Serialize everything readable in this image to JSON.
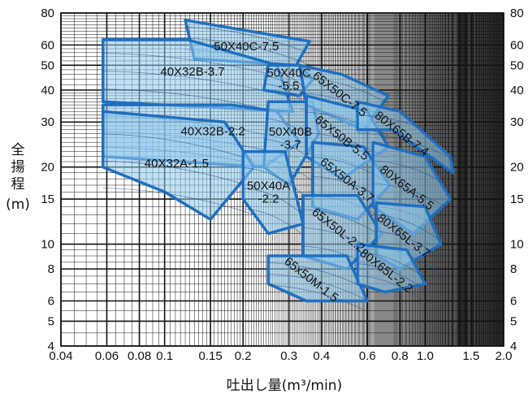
{
  "chart_data": {
    "type": "pump-performance-regions",
    "title": "",
    "xlabel": "吐出し量(m³/min)",
    "ylabel": "全揚程(m)",
    "ylabel_chars": [
      "全",
      "揚",
      "程"
    ],
    "ylabel_unit": "(m)",
    "x_scale": "log",
    "y_scale": "log",
    "xlim": [
      0.04,
      2.0
    ],
    "ylim": [
      4,
      80
    ],
    "x_ticks": [
      0.04,
      0.06,
      0.08,
      0.1,
      0.15,
      0.2,
      0.3,
      0.4,
      0.6,
      0.8,
      1.0,
      1.5,
      2.0
    ],
    "x_tick_labels": [
      "0.04",
      "0.06",
      "0.08",
      "0.1",
      "0.15",
      "0.2",
      "0.3",
      "0.4",
      "0.6",
      "0.8",
      "1.0",
      "1.5",
      "2.0"
    ],
    "y_ticks": [
      4,
      5,
      6,
      8,
      10,
      15,
      20,
      30,
      40,
      50,
      60,
      80
    ],
    "y_tick_labels": [
      "4",
      "5",
      "6",
      "8",
      "10",
      "15",
      "20",
      "30",
      "40",
      "50",
      "60",
      "80"
    ],
    "grid": true,
    "colors": {
      "fill": "#8ec9ec",
      "edge": "#1f6fc0",
      "grid": "#111111",
      "curve": "#1e4f86"
    },
    "regions": [
      {
        "name": "50X40C-7.5",
        "polygon": [
          [
            0.12,
            75
          ],
          [
            0.36,
            62
          ],
          [
            0.32,
            50
          ],
          [
            0.13,
            53
          ]
        ]
      },
      {
        "name": "40X32B-3.7",
        "polygon": [
          [
            0.058,
            63
          ],
          [
            0.122,
            63
          ],
          [
            0.27,
            50
          ],
          [
            0.31,
            33
          ],
          [
            0.058,
            36
          ]
        ]
      },
      {
        "name": "40X32B-2.2",
        "polygon": [
          [
            0.058,
            35
          ],
          [
            0.18,
            35
          ],
          [
            0.27,
            33
          ],
          [
            0.33,
            25
          ],
          [
            0.24,
            20
          ],
          [
            0.058,
            22
          ]
        ]
      },
      {
        "name": "40X32A-1.5",
        "polygon": [
          [
            0.058,
            33
          ],
          [
            0.17,
            30
          ],
          [
            0.22,
            20
          ],
          [
            0.15,
            12.5
          ],
          [
            0.1,
            16
          ],
          [
            0.058,
            20
          ]
        ]
      },
      {
        "name": "50X40C\n-5.5",
        "polygon": [
          [
            0.25,
            50
          ],
          [
            0.33,
            50
          ],
          [
            0.37,
            44
          ],
          [
            0.33,
            38
          ],
          [
            0.24,
            40
          ]
        ]
      },
      {
        "name": "50X40B\n-3.7",
        "polygon": [
          [
            0.25,
            36
          ],
          [
            0.37,
            36
          ],
          [
            0.39,
            27
          ],
          [
            0.3,
            17
          ],
          [
            0.24,
            20
          ]
        ]
      },
      {
        "name": "50X40A\n-2.2",
        "polygon": [
          [
            0.2,
            23
          ],
          [
            0.29,
            23
          ],
          [
            0.34,
            12
          ],
          [
            0.25,
            11
          ],
          [
            0.2,
            15
          ]
        ]
      },
      {
        "name": "65X50C-7.5",
        "polygon": [
          [
            0.33,
            50
          ],
          [
            0.48,
            46
          ],
          [
            0.72,
            38
          ],
          [
            0.58,
            28
          ],
          [
            0.35,
            35
          ]
        ]
      },
      {
        "name": "65X50B-5.5",
        "polygon": [
          [
            0.35,
            38
          ],
          [
            0.6,
            33
          ],
          [
            0.72,
            24
          ],
          [
            0.48,
            18
          ],
          [
            0.35,
            22
          ]
        ]
      },
      {
        "name": "65X50A-3.7",
        "polygon": [
          [
            0.37,
            25
          ],
          [
            0.58,
            24
          ],
          [
            0.73,
            17
          ],
          [
            0.55,
            12.5
          ],
          [
            0.37,
            14
          ]
        ]
      },
      {
        "name": "65X50L-2.2",
        "polygon": [
          [
            0.34,
            15.5
          ],
          [
            0.55,
            15.5
          ],
          [
            0.68,
            11
          ],
          [
            0.5,
            8
          ],
          [
            0.34,
            9
          ]
        ]
      },
      {
        "name": "65x50M-1.5",
        "polygon": [
          [
            0.25,
            9
          ],
          [
            0.5,
            9
          ],
          [
            0.6,
            6
          ],
          [
            0.35,
            6
          ],
          [
            0.25,
            7
          ]
        ]
      },
      {
        "name": "80X65B-7.4",
        "polygon": [
          [
            0.55,
            36
          ],
          [
            0.8,
            33
          ],
          [
            1.25,
            22
          ],
          [
            1.28,
            19
          ],
          [
            0.75,
            28
          ],
          [
            0.55,
            28
          ]
        ]
      },
      {
        "name": "80X65A-5.5",
        "polygon": [
          [
            0.63,
            25
          ],
          [
            1.0,
            22
          ],
          [
            1.25,
            15
          ],
          [
            0.9,
            11
          ],
          [
            0.63,
            14
          ]
        ]
      },
      {
        "name": "80X65L-3.7",
        "polygon": [
          [
            0.65,
            14.5
          ],
          [
            1.0,
            14
          ],
          [
            1.15,
            10
          ],
          [
            0.8,
            8
          ],
          [
            0.65,
            9
          ]
        ]
      },
      {
        "name": "80X65L-2.2",
        "polygon": [
          [
            0.55,
            10
          ],
          [
            0.85,
            9.5
          ],
          [
            1.0,
            7
          ],
          [
            0.7,
            6.5
          ],
          [
            0.55,
            7
          ]
        ]
      }
    ]
  }
}
